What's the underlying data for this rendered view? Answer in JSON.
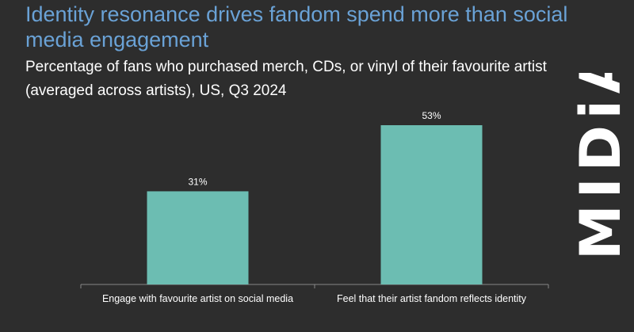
{
  "title": "Identity resonance drives fandom spend more than social media engagement",
  "subtitle": "Percentage of fans who purchased merch, CDs, or vinyl of their favourite artist (averaged across artists), US, Q3 2024",
  "logo": {
    "text": "MIDiA",
    "color": "#ffffff"
  },
  "colors": {
    "background": "#2d2d2d",
    "title": "#6aa2d6",
    "bar": "#6cbdb2",
    "axis": "#888888"
  },
  "chart_data": {
    "type": "bar",
    "title": "Identity resonance drives fandom spend more than social media engagement",
    "subtitle": "Percentage of fans who purchased merch, CDs, or vinyl of their favourite artist (averaged across artists), US, Q3 2024",
    "categories": [
      "Engage with favourite artist on social media",
      "Feel that their artist fandom reflects identity"
    ],
    "values": [
      31,
      53
    ],
    "data_labels": [
      "31%",
      "53%"
    ],
    "ylim": [
      0,
      60
    ],
    "xlabel": "",
    "ylabel": "",
    "grid": false,
    "legend": "none"
  }
}
